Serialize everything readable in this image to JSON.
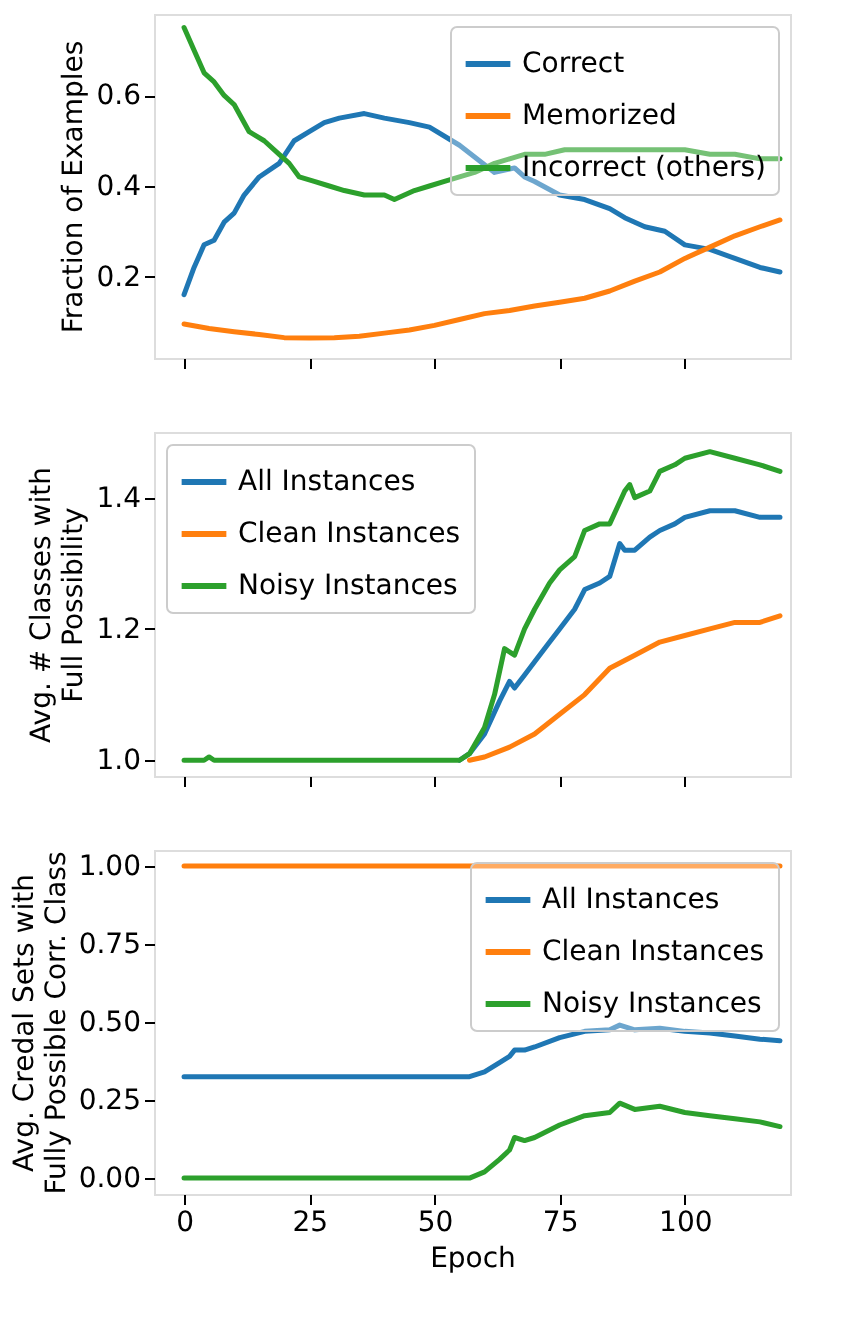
{
  "chart_data": [
    {
      "type": "line",
      "ylabel": "Fraction of Examples",
      "xlim": [
        -6,
        121
      ],
      "xticks": [
        0,
        25,
        50,
        75,
        100
      ],
      "ylim": [
        0.02,
        0.78
      ],
      "yticks": [
        0.2,
        0.4,
        0.6
      ],
      "tick_labels": "y",
      "grid": false,
      "legend": "top right",
      "line_style": "solid",
      "marker": "none",
      "series": [
        {
          "name": "Correct",
          "color": "#1f77b4",
          "x": [
            0,
            2,
            4,
            6,
            8,
            10,
            12,
            15,
            19,
            22,
            25,
            28,
            31,
            36,
            40,
            45,
            49,
            55,
            62,
            66,
            68,
            70,
            75,
            80,
            85,
            88,
            92,
            96,
            100,
            105,
            110,
            115,
            119
          ],
          "values": [
            0.16,
            0.22,
            0.27,
            0.28,
            0.32,
            0.34,
            0.38,
            0.42,
            0.45,
            0.5,
            0.52,
            0.54,
            0.55,
            0.56,
            0.55,
            0.54,
            0.53,
            0.49,
            0.43,
            0.44,
            0.42,
            0.41,
            0.38,
            0.37,
            0.35,
            0.33,
            0.31,
            0.3,
            0.27,
            0.26,
            0.24,
            0.22,
            0.21
          ]
        },
        {
          "name": "Memorized",
          "color": "#ff7f0e",
          "x": [
            0,
            5,
            10,
            15,
            20,
            25,
            30,
            35,
            40,
            45,
            50,
            55,
            60,
            65,
            70,
            75,
            80,
            85,
            90,
            95,
            100,
            105,
            110,
            115,
            119
          ],
          "values": [
            0.095,
            0.085,
            0.078,
            0.072,
            0.065,
            0.064,
            0.065,
            0.068,
            0.075,
            0.082,
            0.092,
            0.105,
            0.118,
            0.125,
            0.135,
            0.143,
            0.152,
            0.168,
            0.19,
            0.21,
            0.24,
            0.265,
            0.29,
            0.31,
            0.325
          ]
        },
        {
          "name": "Incorrect (others)",
          "color": "#2ca02c",
          "x": [
            0,
            2,
            4,
            6,
            8,
            10,
            13,
            16,
            19,
            21,
            23,
            26,
            29,
            32,
            36,
            40,
            42,
            46,
            49,
            52,
            55,
            58,
            62,
            65,
            68,
            72,
            76,
            80,
            85,
            90,
            95,
            100,
            105,
            110,
            115,
            119
          ],
          "values": [
            0.75,
            0.7,
            0.65,
            0.63,
            0.6,
            0.58,
            0.52,
            0.5,
            0.47,
            0.45,
            0.42,
            0.41,
            0.4,
            0.39,
            0.38,
            0.38,
            0.37,
            0.39,
            0.4,
            0.41,
            0.42,
            0.43,
            0.45,
            0.46,
            0.47,
            0.47,
            0.48,
            0.48,
            0.48,
            0.48,
            0.48,
            0.48,
            0.47,
            0.47,
            0.46,
            0.46
          ]
        }
      ]
    },
    {
      "type": "line",
      "ylabel": "Avg. # Classes with\nFull Possibility",
      "xlim": [
        -6,
        121
      ],
      "xticks": [
        0,
        25,
        50,
        75,
        100
      ],
      "ylim": [
        0.976,
        1.5
      ],
      "yticks": [
        {
          "value": 1.0,
          "label": "1.0"
        },
        1.2,
        1.4
      ],
      "tick_labels": "y",
      "grid": false,
      "legend": "top left",
      "line_style": "solid",
      "marker": "none",
      "series": [
        {
          "name": "All Instances",
          "color": "#1f77b4",
          "x": [
            55,
            57,
            60,
            63,
            65,
            66,
            68,
            70,
            73,
            75,
            78,
            80,
            83,
            85,
            87,
            88,
            90,
            93,
            95,
            98,
            100,
            105,
            110,
            115,
            119
          ],
          "values": [
            1.0,
            1.01,
            1.04,
            1.09,
            1.12,
            1.11,
            1.13,
            1.15,
            1.18,
            1.2,
            1.23,
            1.26,
            1.27,
            1.28,
            1.33,
            1.32,
            1.32,
            1.34,
            1.35,
            1.36,
            1.37,
            1.38,
            1.38,
            1.37,
            1.37
          ]
        },
        {
          "name": "Clean Instances",
          "color": "#ff7f0e",
          "x": [
            57,
            60,
            65,
            70,
            75,
            80,
            85,
            90,
            95,
            100,
            105,
            110,
            115,
            119
          ],
          "values": [
            1.0,
            1.005,
            1.02,
            1.04,
            1.07,
            1.1,
            1.14,
            1.16,
            1.18,
            1.19,
            1.2,
            1.21,
            1.21,
            1.22
          ]
        },
        {
          "name": "Noisy Instances",
          "color": "#2ca02c",
          "x": [
            0,
            4,
            5,
            6,
            10,
            20,
            30,
            40,
            50,
            55,
            57,
            60,
            62,
            64,
            66,
            68,
            70,
            73,
            75,
            78,
            80,
            83,
            85,
            88,
            89,
            90,
            93,
            95,
            98,
            100,
            105,
            110,
            115,
            119
          ],
          "values": [
            1.0,
            1.0,
            1.005,
            1.0,
            1.0,
            1.0,
            1.0,
            1.0,
            1.0,
            1.0,
            1.01,
            1.05,
            1.1,
            1.17,
            1.16,
            1.2,
            1.23,
            1.27,
            1.29,
            1.31,
            1.35,
            1.36,
            1.36,
            1.41,
            1.42,
            1.4,
            1.41,
            1.44,
            1.45,
            1.46,
            1.47,
            1.46,
            1.45,
            1.44
          ]
        }
      ]
    },
    {
      "type": "line",
      "ylabel": "Avg. Credal Sets with\nFully Possible Corr. Class",
      "xlabel": "Epoch",
      "xlim": [
        -6,
        121
      ],
      "xticks": [
        0,
        25,
        50,
        75,
        100
      ],
      "ylim": [
        -0.051,
        1.051
      ],
      "yticks": [
        {
          "value": 0.0,
          "label": "0.00"
        },
        0.25,
        {
          "value": 0.5,
          "label": "0.50"
        },
        0.75,
        {
          "value": 1.0,
          "label": "1.00"
        }
      ],
      "grid": false,
      "legend": "top right",
      "line_style": "solid",
      "marker": "none",
      "series": [
        {
          "name": "All Instances",
          "color": "#1f77b4",
          "x": [
            0,
            20,
            40,
            57,
            60,
            63,
            65,
            66,
            68,
            70,
            75,
            80,
            85,
            87,
            90,
            95,
            100,
            105,
            110,
            115,
            119
          ],
          "values": [
            0.325,
            0.325,
            0.325,
            0.325,
            0.34,
            0.37,
            0.39,
            0.41,
            0.41,
            0.42,
            0.45,
            0.47,
            0.475,
            0.49,
            0.475,
            0.48,
            0.47,
            0.465,
            0.455,
            0.445,
            0.44
          ]
        },
        {
          "name": "Clean Instances",
          "color": "#ff7f0e",
          "x": [
            0,
            40,
            80,
            119
          ],
          "values": [
            1.0,
            1.0,
            1.0,
            1.0
          ]
        },
        {
          "name": "Noisy Instances",
          "color": "#2ca02c",
          "x": [
            0,
            20,
            40,
            57,
            60,
            63,
            65,
            66,
            68,
            70,
            75,
            80,
            85,
            87,
            90,
            95,
            100,
            105,
            110,
            115,
            119
          ],
          "values": [
            0.0,
            0.0,
            0.0,
            0.0,
            0.02,
            0.06,
            0.09,
            0.13,
            0.12,
            0.13,
            0.17,
            0.2,
            0.21,
            0.24,
            0.22,
            0.23,
            0.21,
            0.2,
            0.19,
            0.18,
            0.165
          ]
        }
      ]
    }
  ]
}
